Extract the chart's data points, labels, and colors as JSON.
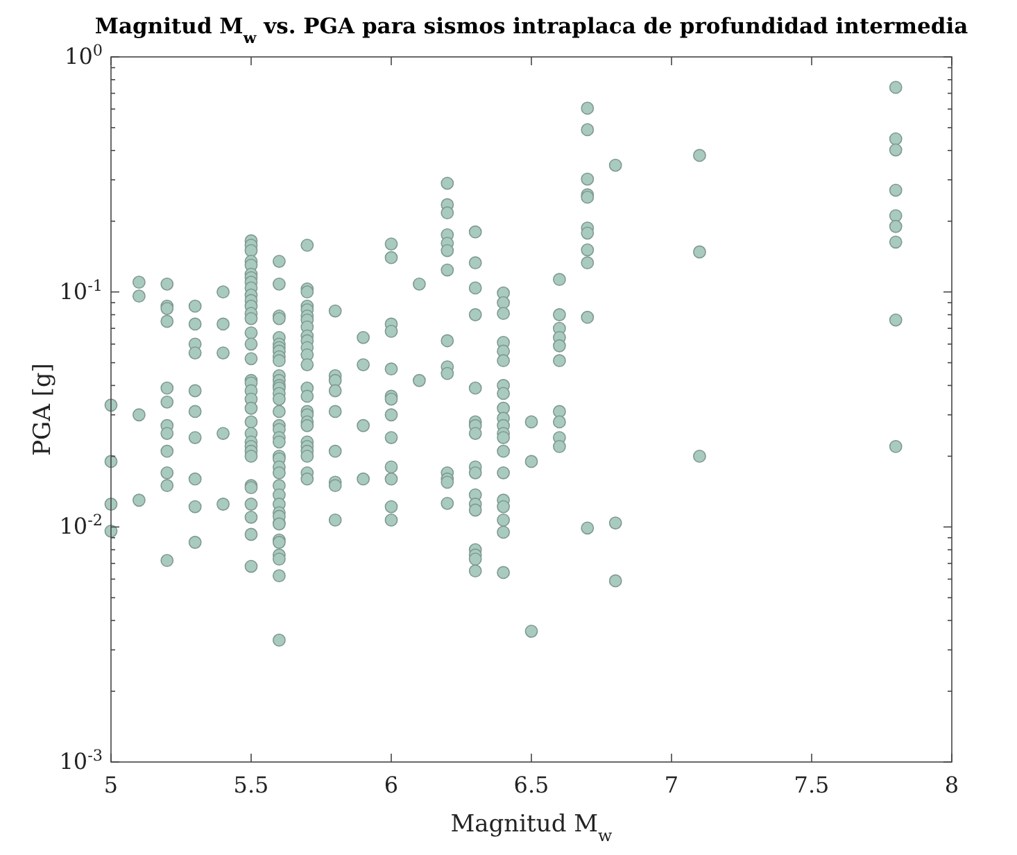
{
  "chart_data": {
    "type": "scatter",
    "title": "Magnitud M$_{w}$ vs. PGA para sismos intraplaca de profundidad intermedia",
    "xlabel": "Magnitud M$_{w}$",
    "ylabel": "PGA [g]",
    "log": "y",
    "marker": "circle",
    "grid": false,
    "xlim": [
      5,
      8
    ],
    "xticks": [
      5,
      5.5,
      6,
      6.5,
      7,
      7.5,
      8
    ],
    "ylim": [
      0.001,
      1
    ],
    "yticks": [
      {
        "value": 0.001,
        "label": "10$^{-3}$"
      },
      {
        "value": 0.002,
        "label": null
      },
      {
        "value": 0.003,
        "label": null
      },
      {
        "value": 0.004,
        "label": null
      },
      {
        "value": 0.005,
        "label": null
      },
      {
        "value": 0.006,
        "label": null
      },
      {
        "value": 0.007,
        "label": null
      },
      {
        "value": 0.008,
        "label": null
      },
      {
        "value": 0.009,
        "label": null
      },
      {
        "value": 0.01,
        "label": "10$^{-2}$"
      },
      {
        "value": 0.02,
        "label": null
      },
      {
        "value": 0.03,
        "label": null
      },
      {
        "value": 0.04,
        "label": null
      },
      {
        "value": 0.05,
        "label": null
      },
      {
        "value": 0.06,
        "label": null
      },
      {
        "value": 0.07,
        "label": null
      },
      {
        "value": 0.08,
        "label": null
      },
      {
        "value": 0.09,
        "label": null
      },
      {
        "value": 0.1,
        "label": "10$^{-1}$"
      },
      {
        "value": 0.2,
        "label": null
      },
      {
        "value": 0.3,
        "label": null
      },
      {
        "value": 0.4,
        "label": null
      },
      {
        "value": 0.5,
        "label": null
      },
      {
        "value": 0.6,
        "label": null
      },
      {
        "value": 0.7,
        "label": null
      },
      {
        "value": 0.8,
        "label": null
      },
      {
        "value": 0.9,
        "label": null
      },
      {
        "value": 1,
        "label": "10$^{0}$"
      }
    ],
    "series": [
      {
        "color": "#a9cbbf",
        "x": [
          5,
          5,
          5,
          5,
          5.1,
          5.1,
          5.1,
          5.1,
          5.2,
          5.2,
          5.2,
          5.2,
          5.2,
          5.2,
          5.2,
          5.2,
          5.2,
          5.2,
          5.2,
          5.2,
          5.3,
          5.3,
          5.3,
          5.3,
          5.3,
          5.3,
          5.3,
          5.3,
          5.3,
          5.3,
          5.4,
          5.4,
          5.4,
          5.4,
          5.4,
          5.5,
          5.5,
          5.5,
          5.5,
          5.5,
          5.5,
          5.5,
          5.5,
          5.5,
          5.5,
          5.5,
          5.5,
          5.5,
          5.5,
          5.5,
          5.5,
          5.5,
          5.5,
          5.5,
          5.5,
          5.5,
          5.5,
          5.5,
          5.5,
          5.5,
          5.5,
          5.5,
          5.5,
          5.5,
          5.5,
          5.5,
          5.5,
          5.5,
          5.5,
          5.6,
          5.6,
          5.6,
          5.6,
          5.6,
          5.6,
          5.6,
          5.6,
          5.6,
          5.6,
          5.6,
          5.6,
          5.6,
          5.6,
          5.6,
          5.6,
          5.6,
          5.6,
          5.6,
          5.6,
          5.6,
          5.6,
          5.6,
          5.6,
          5.6,
          5.6,
          5.6,
          5.6,
          5.6,
          5.6,
          5.6,
          5.6,
          5.6,
          5.6,
          5.6,
          5.6,
          5.6,
          5.6,
          5.7,
          5.7,
          5.7,
          5.7,
          5.7,
          5.7,
          5.7,
          5.7,
          5.7,
          5.7,
          5.7,
          5.7,
          5.7,
          5.7,
          5.7,
          5.7,
          5.7,
          5.7,
          5.7,
          5.7,
          5.7,
          5.7,
          5.7,
          5.7,
          5.7,
          5.8,
          5.8,
          5.8,
          5.8,
          5.8,
          5.8,
          5.8,
          5.8,
          5.8,
          5.9,
          5.9,
          5.9,
          5.9,
          6,
          6,
          6,
          6,
          6,
          6,
          6,
          6,
          6,
          6,
          6,
          6,
          6,
          6.1,
          6.1,
          6.2,
          6.2,
          6.2,
          6.2,
          6.2,
          6.2,
          6.2,
          6.2,
          6.2,
          6.2,
          6.2,
          6.2,
          6.2,
          6.2,
          6.3,
          6.3,
          6.3,
          6.3,
          6.3,
          6.3,
          6.3,
          6.3,
          6.3,
          6.3,
          6.3,
          6.3,
          6.3,
          6.3,
          6.3,
          6.3,
          6.3,
          6.4,
          6.4,
          6.4,
          6.4,
          6.4,
          6.4,
          6.4,
          6.4,
          6.4,
          6.4,
          6.4,
          6.4,
          6.4,
          6.4,
          6.4,
          6.4,
          6.4,
          6.4,
          6.4,
          6.4,
          6.5,
          6.5,
          6.5,
          6.6,
          6.6,
          6.6,
          6.6,
          6.6,
          6.6,
          6.6,
          6.6,
          6.6,
          6.6,
          6.7,
          6.7,
          6.7,
          6.7,
          6.7,
          6.7,
          6.7,
          6.7,
          6.7,
          6.7,
          6.7,
          6.8,
          6.8,
          6.8,
          7.1,
          7.1,
          7.1,
          7.8,
          7.8,
          7.8,
          7.8,
          7.8,
          7.8,
          7.8,
          7.8,
          7.8
        ],
        "values": [
          0.033,
          0.019,
          0.0125,
          0.0096,
          0.11,
          0.096,
          0.03,
          0.013,
          0.108,
          0.087,
          0.085,
          0.075,
          0.039,
          0.034,
          0.027,
          0.025,
          0.021,
          0.017,
          0.015,
          0.0072,
          0.087,
          0.073,
          0.06,
          0.055,
          0.038,
          0.031,
          0.024,
          0.016,
          0.0122,
          0.0086,
          0.1,
          0.073,
          0.055,
          0.025,
          0.0125,
          0.165,
          0.158,
          0.15,
          0.135,
          0.13,
          0.119,
          0.115,
          0.11,
          0.104,
          0.097,
          0.092,
          0.087,
          0.081,
          0.077,
          0.067,
          0.06,
          0.052,
          0.042,
          0.041,
          0.038,
          0.035,
          0.032,
          0.028,
          0.025,
          0.023,
          0.022,
          0.021,
          0.02,
          0.015,
          0.0147,
          0.0125,
          0.011,
          0.0093,
          0.0068,
          0.0033,
          0.135,
          0.108,
          0.079,
          0.077,
          0.064,
          0.06,
          0.058,
          0.056,
          0.053,
          0.051,
          0.044,
          0.042,
          0.04,
          0.039,
          0.037,
          0.035,
          0.031,
          0.027,
          0.026,
          0.024,
          0.023,
          0.02,
          0.0195,
          0.018,
          0.017,
          0.015,
          0.0137,
          0.0125,
          0.0115,
          0.0104,
          0.0111,
          0.0103,
          0.0088,
          0.0086,
          0.0076,
          0.0073,
          0.0062,
          0.158,
          0.103,
          0.1,
          0.087,
          0.084,
          0.079,
          0.076,
          0.071,
          0.065,
          0.062,
          0.058,
          0.054,
          0.049,
          0.039,
          0.036,
          0.031,
          0.03,
          0.028,
          0.027,
          0.023,
          0.022,
          0.021,
          0.02,
          0.017,
          0.016,
          0.083,
          0.044,
          0.042,
          0.038,
          0.031,
          0.021,
          0.0155,
          0.015,
          0.0107,
          0.064,
          0.049,
          0.027,
          0.016,
          0.16,
          0.14,
          0.073,
          0.068,
          0.047,
          0.036,
          0.035,
          0.03,
          0.024,
          0.018,
          0.016,
          0.0122,
          0.0107,
          0.108,
          0.042,
          0.29,
          0.235,
          0.217,
          0.175,
          0.161,
          0.15,
          0.124,
          0.062,
          0.048,
          0.045,
          0.017,
          0.016,
          0.0155,
          0.0126,
          0.18,
          0.133,
          0.104,
          0.08,
          0.039,
          0.028,
          0.027,
          0.025,
          0.018,
          0.017,
          0.0137,
          0.0125,
          0.0118,
          0.008,
          0.0076,
          0.0073,
          0.0065,
          0.099,
          0.09,
          0.081,
          0.061,
          0.056,
          0.051,
          0.04,
          0.037,
          0.032,
          0.029,
          0.027,
          0.025,
          0.024,
          0.021,
          0.017,
          0.013,
          0.0122,
          0.0107,
          0.0095,
          0.0064,
          0.028,
          0.019,
          0.0036,
          0.113,
          0.08,
          0.07,
          0.064,
          0.059,
          0.051,
          0.031,
          0.028,
          0.024,
          0.022,
          0.605,
          0.49,
          0.302,
          0.259,
          0.253,
          0.187,
          0.178,
          0.151,
          0.133,
          0.078,
          0.0099,
          0.346,
          0.0104,
          0.0059,
          0.381,
          0.148,
          0.02,
          0.742,
          0.448,
          0.402,
          0.271,
          0.211,
          0.19,
          0.163,
          0.076,
          0.022
        ]
      }
    ]
  }
}
